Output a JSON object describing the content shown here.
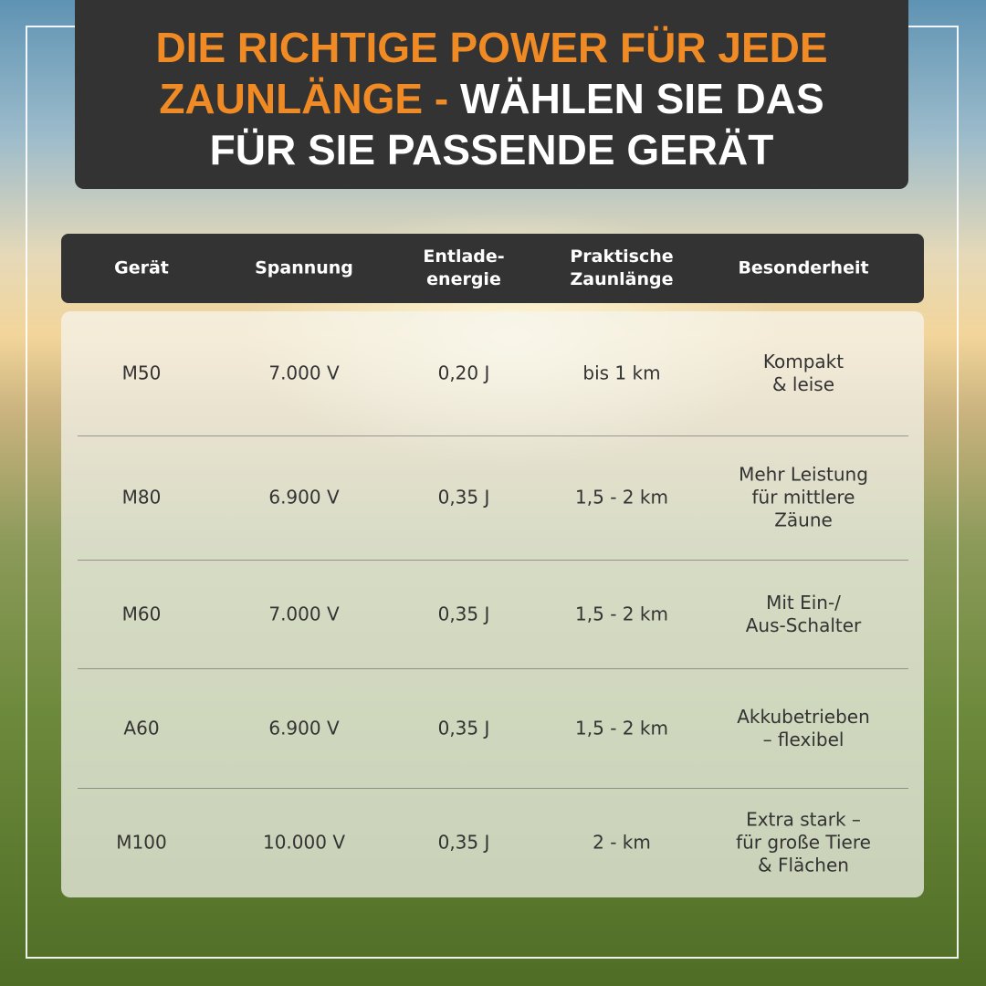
{
  "header": {
    "title": {
      "accent": [
        "DIE RICHTIGE POWER FÜR JEDE",
        "ZAUNLÄNGE -"
      ],
      "plain": [
        "WÄHLEN SIE DAS",
        "FÜR SIE PASSENDE GERÄT"
      ]
    }
  },
  "table": {
    "columns": [
      [
        "Gerät"
      ],
      [
        "Spannung"
      ],
      [
        "Entlade-",
        "energie"
      ],
      [
        "Praktische",
        "Zaunlänge"
      ],
      [
        "Besonderheit"
      ]
    ],
    "rows": [
      [
        [
          "M50"
        ],
        [
          "7.000 V"
        ],
        [
          "0,20 J"
        ],
        [
          "bis 1 km"
        ],
        [
          "Kompakt",
          "& leise"
        ]
      ],
      [
        [
          "M80"
        ],
        [
          "6.900 V"
        ],
        [
          "0,35 J"
        ],
        [
          "1,5 - 2 km"
        ],
        [
          "Mehr Leistung",
          "für mittlere",
          "Zäune"
        ]
      ],
      [
        [
          "M60"
        ],
        [
          "7.000 V"
        ],
        [
          "0,35 J"
        ],
        [
          "1,5 - 2 km"
        ],
        [
          "Mit Ein-/",
          "Aus-Schalter"
        ]
      ],
      [
        [
          "A60"
        ],
        [
          "6.900 V"
        ],
        [
          "0,35 J"
        ],
        [
          "1,5 - 2 km"
        ],
        [
          "Akkubetrieben",
          "– flexibel"
        ]
      ],
      [
        [
          "M100"
        ],
        [
          "10.000 V"
        ],
        [
          "0,35 J"
        ],
        [
          "2 - km"
        ],
        [
          "Extra stark –",
          "für große Tiere",
          "& Flächen"
        ]
      ]
    ]
  }
}
